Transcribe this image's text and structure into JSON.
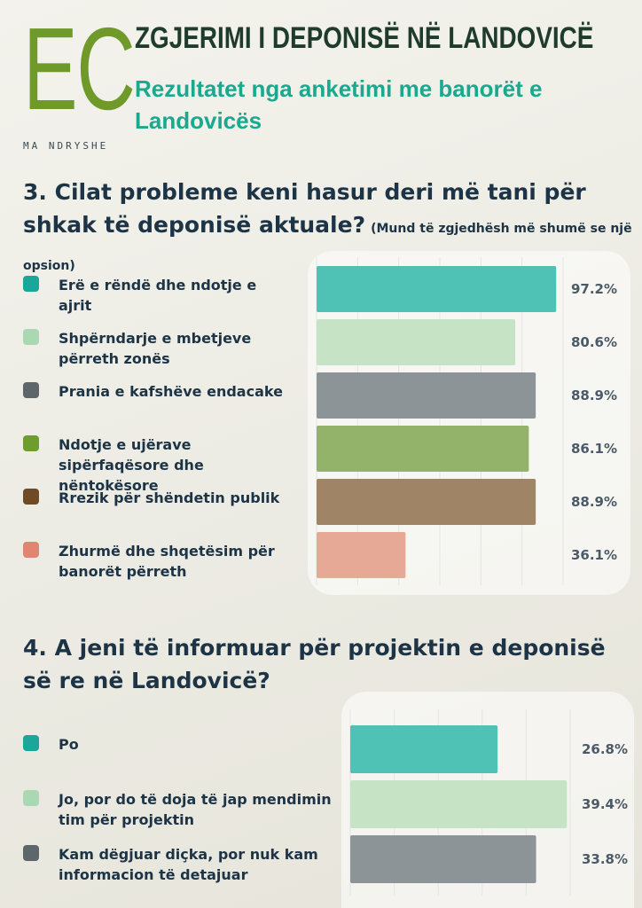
{
  "logo": {
    "letters": "EC",
    "tagline": "MA NDRYSHE"
  },
  "header": {
    "title": "ZGJERIMI I DEPONISË NË LANDOVICË",
    "subtitle": "Rezultatet nga anketimi me banorët e Landovicës"
  },
  "q3": {
    "question": "3. Cilat probleme keni hasur deri më tani për shkak të deponisë aktuale?",
    "note": "(Mund të zgjedhësh më shumë se një opsion)"
  },
  "q4": {
    "question": "4. A jeni të informuar për projektin e deponisë së re në Landovicë?"
  },
  "colors": {
    "teal": "#4fc1b5",
    "mint": "#c6e3c5",
    "gray": "#8c9497",
    "olive": "#93b36a",
    "brown": "#a08466",
    "salmon": "#e5a996",
    "teal_swatch": "#1aa699",
    "mint_swatch": "#a9d9b2",
    "gray_swatch": "#5c666b",
    "olive_swatch": "#6e9d2e",
    "brown_swatch": "#6f4b25",
    "salmon_swatch": "#e08670"
  },
  "chart_data": [
    {
      "type": "bar",
      "orientation": "horizontal",
      "title": "3. Cilat probleme keni hasur deri më tani për shkak të deponisë aktuale?",
      "categories": [
        "Erë e rëndë dhe ndotje e ajrit",
        "Shpërndarje e mbetjeve përreth zonës",
        "Prania e kafshëve endacake",
        "Ndotje e ujërave sipërfaqësore dhe nëntokësore",
        "Rrezik për shëndetin publik",
        "Zhurmë dhe shqetësim për banorët përreth"
      ],
      "values": [
        97.2,
        80.6,
        88.9,
        86.1,
        88.9,
        36.1
      ],
      "value_labels": [
        "97.2%",
        "80.6%",
        "88.9%",
        "86.1%",
        "88.9%",
        "36.1%"
      ],
      "units": "%",
      "xlim": [
        0,
        100
      ],
      "grid": true,
      "legend": "left"
    },
    {
      "type": "bar",
      "orientation": "horizontal",
      "title": "4. A jeni të informuar për projektin e deponisë së re në Landovicë?",
      "categories": [
        "Po",
        "Jo, por do të doja të jap mendimin tim për projektin",
        "Kam dëgjuar diçka, por nuk kam informacion të detajuar"
      ],
      "values": [
        26.8,
        39.4,
        33.8
      ],
      "value_labels": [
        "26.8%",
        "39.4%",
        "33.8%"
      ],
      "units": "%",
      "xlim": [
        0,
        40
      ],
      "grid": true,
      "legend": "left"
    }
  ]
}
